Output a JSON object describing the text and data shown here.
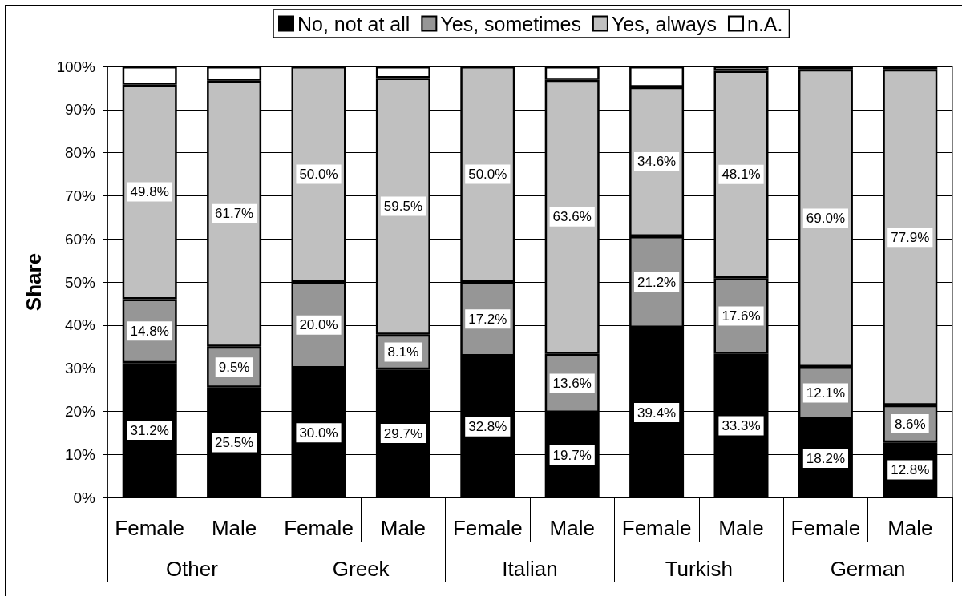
{
  "chart_data": {
    "type": "bar",
    "stacked": true,
    "ylabel": "Share",
    "categories": [
      "Female",
      "Male",
      "Female",
      "Male",
      "Female",
      "Male",
      "Female",
      "Male",
      "Female",
      "Male"
    ],
    "annotations": [
      "Other",
      "Greek",
      "Italian",
      "Turkish",
      "German"
    ],
    "ylim": [
      0,
      100
    ],
    "yticks": [
      {
        "value": 0,
        "label": "0%"
      },
      {
        "value": 10,
        "label": "10%"
      },
      {
        "value": 20,
        "label": "20%"
      },
      {
        "value": 30,
        "label": "30%"
      },
      {
        "value": 40,
        "label": "40%"
      },
      {
        "value": 50,
        "label": "50%"
      },
      {
        "value": 60,
        "label": "60%"
      },
      {
        "value": 70,
        "label": "70%"
      },
      {
        "value": 80,
        "label": "80%"
      },
      {
        "value": 90,
        "label": "90%"
      },
      {
        "value": 100,
        "label": "100%"
      }
    ],
    "grid": "y",
    "legend": "top",
    "series": [
      {
        "name": "No, not at all",
        "color": "#000000",
        "values": [
          31.2,
          25.5,
          30.0,
          29.7,
          32.8,
          19.7,
          39.4,
          33.3,
          18.2,
          12.8
        ],
        "value_labels": [
          "31.2%",
          "25.5%",
          "30.0%",
          "29.7%",
          "32.8%",
          "19.7%",
          "39.4%",
          "33.3%",
          "18.2%",
          "12.8%"
        ]
      },
      {
        "name": "Yes, sometimes",
        "color": "#969696",
        "values": [
          14.8,
          9.5,
          20.0,
          8.1,
          17.2,
          13.6,
          21.2,
          17.6,
          12.1,
          8.6
        ],
        "value_labels": [
          "14.8%",
          "9.5%",
          "20.0%",
          "8.1%",
          "17.2%",
          "13.6%",
          "21.2%",
          "17.6%",
          "12.1%",
          "8.6%"
        ]
      },
      {
        "name": "Yes, always",
        "color": "#c0c0c0",
        "values": [
          49.8,
          61.7,
          50.0,
          59.5,
          50.0,
          63.6,
          34.6,
          48.1,
          69.0,
          77.9
        ],
        "value_labels": [
          "49.8%",
          "61.7%",
          "50.0%",
          "59.5%",
          "50.0%",
          "63.6%",
          "34.6%",
          "48.1%",
          "69.0%",
          "77.9%"
        ]
      },
      {
        "name": "n.A.",
        "color": "#ffffff",
        "values": [
          4.2,
          3.3,
          0,
          2.7,
          0,
          3.1,
          4.8,
          1.0,
          0.7,
          0.7
        ]
      }
    ]
  }
}
